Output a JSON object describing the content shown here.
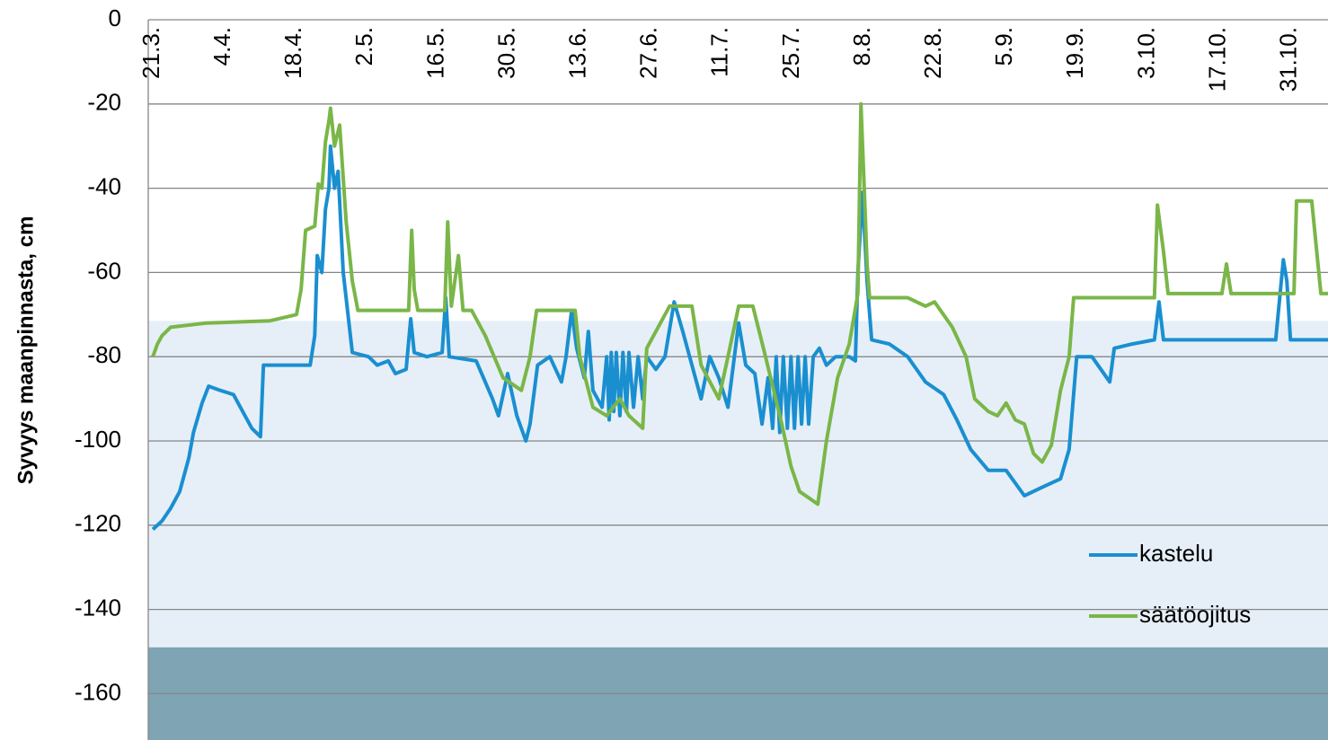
{
  "chart_data": {
    "type": "line",
    "y_label": "Syvyys maanpinnasta, cm",
    "xlim": [
      -0.9,
      231.5
    ],
    "xticks": [
      {
        "value": 0,
        "label": "21.3."
      },
      {
        "value": 14,
        "label": "4.4."
      },
      {
        "value": 28,
        "label": "18.4."
      },
      {
        "value": 42,
        "label": "2.5."
      },
      {
        "value": 56,
        "label": "16.5."
      },
      {
        "value": 70,
        "label": "30.5."
      },
      {
        "value": 84,
        "label": "13.6."
      },
      {
        "value": 98,
        "label": "27.6."
      },
      {
        "value": 112,
        "label": "11.7."
      },
      {
        "value": 126,
        "label": "25.7."
      },
      {
        "value": 140,
        "label": "8.8."
      },
      {
        "value": 154,
        "label": "22.8."
      },
      {
        "value": 168,
        "label": "5.9."
      },
      {
        "value": 182,
        "label": "19.9."
      },
      {
        "value": 196,
        "label": "3.10."
      },
      {
        "value": 210,
        "label": "17.10."
      },
      {
        "value": 224,
        "label": "31.10."
      }
    ],
    "ylim": [
      -171,
      0
    ],
    "yticks": [
      0,
      -20,
      -40,
      -60,
      -80,
      -100,
      -120,
      -140,
      -160
    ],
    "grid": true,
    "legend": "lower right",
    "bands": [
      {
        "from": -71.5,
        "to": -149,
        "color": "#e6eff8"
      },
      {
        "from": -149,
        "to": -171,
        "color": "#7fa4b4"
      }
    ],
    "series": [
      {
        "name": "kastelu",
        "color": "#1a8fd0",
        "x": [
          0,
          1.8,
          3.5,
          5.3,
          7.1,
          8,
          9.7,
          11,
          13.3,
          15.9,
          17.7,
          19.5,
          21.2,
          21.8,
          31,
          31.9,
          32.4,
          33.3,
          34,
          34.7,
          35,
          35.8,
          36.5,
          37.5,
          39.3,
          42.5,
          44.2,
          46.4,
          47.8,
          49.9,
          50.8,
          51.5,
          54,
          57,
          57.7,
          58.4,
          63.7,
          66.9,
          68.1,
          69.9,
          71.7,
          73.5,
          74.3,
          75.8,
          78.2,
          80.5,
          81.4,
          82.5,
          83.5,
          85,
          85.8,
          86.7,
          88.5,
          89.4,
          89.9,
          90.3,
          90.8,
          91.3,
          92,
          92.6,
          93.3,
          93.8,
          94.7,
          95.6,
          96.5,
          97.3,
          99.1,
          100.9,
          102.7,
          104.4,
          106.2,
          108,
          109.7,
          111.5,
          113.3,
          115.4,
          116.8,
          118.6,
          120,
          121.2,
          122.1,
          122.8,
          123.5,
          124.2,
          125,
          125.7,
          126.4,
          127.1,
          127.8,
          128.5,
          129.2,
          130.1,
          131.3,
          132.7,
          134.5,
          137.2,
          138.4,
          138.9,
          139.8,
          140.7,
          141.6,
          145.1,
          148.7,
          152.2,
          155.8,
          158.4,
          161.1,
          164.6,
          168.1,
          171.7,
          175.2,
          178.8,
          180.5,
          182,
          185,
          188.5,
          189.4,
          192.9,
          197.3,
          198.2,
          199.1,
          221.2,
          222.7,
          223.4,
          224.1,
          231.5
        ],
        "values": [
          -121,
          -119,
          -116,
          -112,
          -104,
          -98,
          -91,
          -87,
          -88,
          -89,
          -93,
          -97,
          -99,
          -82,
          -82,
          -75,
          -56,
          -60,
          -45,
          -40,
          -30,
          -40,
          -36,
          -60,
          -79,
          -80,
          -82,
          -81,
          -84,
          -83,
          -71,
          -79,
          -80,
          -79,
          -66,
          -80,
          -81,
          -90,
          -94,
          -84,
          -94,
          -100,
          -96,
          -82,
          -80,
          -86,
          -80,
          -69,
          -78,
          -85,
          -74,
          -88,
          -92,
          -80,
          -95,
          -79,
          -93,
          -79,
          -94,
          -79,
          -93,
          -79,
          -92,
          -80,
          -90,
          -80,
          -83,
          -80,
          -67,
          -74,
          -82,
          -90,
          -80,
          -85,
          -92,
          -72,
          -82,
          -84,
          -96,
          -85,
          -97,
          -80,
          -98,
          -80,
          -97,
          -80,
          -97,
          -80,
          -96,
          -80,
          -96,
          -80,
          -78,
          -82,
          -80,
          -80,
          -81,
          -60,
          -41,
          -62,
          -76,
          -77,
          -80,
          -86,
          -89,
          -95,
          -102,
          -107,
          -107,
          -113,
          -111,
          -109,
          -102,
          -80,
          -80,
          -86,
          -78,
          -77,
          -76,
          -67,
          -76,
          -76,
          -57,
          -62,
          -76,
          -76
        ]
      },
      {
        "name": "säätöojitus",
        "color": "#7ab648",
        "x": [
          0,
          0.9,
          1.8,
          3.5,
          10.6,
          23,
          28.3,
          29.2,
          30.1,
          31.9,
          32.6,
          33.3,
          34,
          34.7,
          35,
          35.8,
          36.8,
          38.1,
          39.3,
          40.4,
          50.4,
          51,
          51.5,
          52.2,
          57.5,
          58.1,
          58.8,
          60.2,
          61.1,
          62.8,
          65.5,
          69,
          72.6,
          74.3,
          75.6,
          83.2,
          84.1,
          86.7,
          89.4,
          92,
          93.8,
          96.5,
          97.3,
          101.8,
          106.2,
          108,
          111.5,
          113.3,
          115.4,
          118.2,
          120.7,
          123.9,
          125.7,
          127.4,
          131,
          132.7,
          134.9,
          137.2,
          138.9,
          139.5,
          140.2,
          140.7,
          141.2,
          148.7,
          152.2,
          154,
          157.5,
          160.2,
          161.9,
          164.6,
          166.4,
          168.1,
          169.9,
          171.7,
          173.5,
          175.2,
          177,
          178.8,
          180.5,
          181.4,
          197.3,
          197.9,
          199.1,
          200,
          210.6,
          211.5,
          212.4,
          224.8,
          225.3,
          228.3,
          230.1,
          231.5
        ],
        "values": [
          -80,
          -77,
          -75,
          -73,
          -72,
          -71.5,
          -70,
          -64,
          -50,
          -49,
          -39,
          -40,
          -29,
          -24,
          -21,
          -30,
          -25,
          -48,
          -62,
          -69,
          -69,
          -50,
          -64,
          -69,
          -69,
          -48,
          -68,
          -56,
          -69,
          -69,
          -75,
          -85,
          -88,
          -80,
          -69,
          -69,
          -80,
          -92,
          -94,
          -90,
          -94,
          -97,
          -78,
          -68,
          -68,
          -82,
          -90,
          -80,
          -68,
          -68,
          -80,
          -96,
          -106,
          -112,
          -115,
          -100,
          -85,
          -77,
          -65,
          -20,
          -42,
          -58,
          -66,
          -66,
          -68,
          -67,
          -73,
          -80,
          -90,
          -93,
          -94,
          -91,
          -95,
          -96,
          -103,
          -105,
          -101,
          -88,
          -80,
          -66,
          -66,
          -44,
          -55,
          -65,
          -65,
          -58,
          -65,
          -65,
          -43,
          -43,
          -65,
          -65
        ]
      }
    ]
  }
}
